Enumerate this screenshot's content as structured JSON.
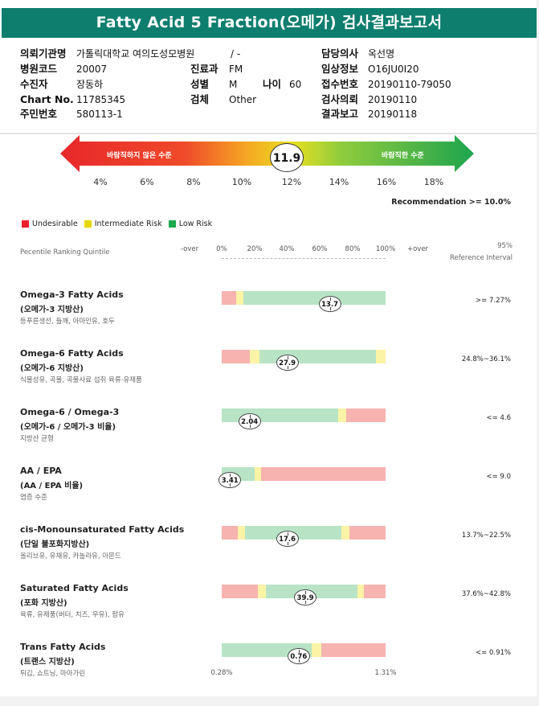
{
  "title": "Fatty Acid 5 Fraction(오메가) 검사결과보고서",
  "info": {
    "col1": [
      {
        "label": "의뢰기관명",
        "value": "가톨릭대학교 여의도성모병원"
      },
      {
        "label": "병원코드",
        "value": "20007"
      },
      {
        "label": "수진자",
        "value": "장동하"
      },
      {
        "label": "Chart No.",
        "value": "11785345"
      },
      {
        "label": "주민번호",
        "value": "580113-1"
      }
    ],
    "ward_value": "/ -",
    "col2": [
      {
        "label": "진료과",
        "value": "FM"
      },
      {
        "label": "성별",
        "value": "M"
      },
      {
        "label": "검체",
        "value": "Other"
      }
    ],
    "age": {
      "label": "나이",
      "value": "60"
    },
    "col3": [
      {
        "label": "담당의사",
        "value": "옥선명"
      },
      {
        "label": "임상정보",
        "value": "O16JU0I20"
      },
      {
        "label": "접수번호",
        "value": "20190110-79050"
      },
      {
        "label": "검사의뢰",
        "value": "20190110"
      },
      {
        "label": "결과보고",
        "value": "20190118"
      }
    ]
  },
  "gauge": {
    "left_text": "바람직하지 않은 수준",
    "right_text": "바람직한 수준",
    "value": "11.9",
    "ticks": [
      "4%",
      "6%",
      "8%",
      "10%",
      "12%",
      "14%",
      "16%",
      "18%"
    ]
  },
  "recommendation": "Recommendation  >= 10.0%",
  "legend": [
    {
      "label": "Undesirable",
      "color": "#e8202a"
    },
    {
      "label": "Intermediate Risk",
      "color": "#e6d800"
    },
    {
      "label": "Low Risk",
      "color": "#1fa84f"
    }
  ],
  "columns": {
    "ranking": "Pecentile Ranking Quintile",
    "ref_line1": "95%",
    "ref_line2": "Reference Interval",
    "scale": [
      "-over",
      "0%",
      "20%",
      "40%",
      "60%",
      "80%",
      "100%",
      "+over"
    ]
  },
  "rows": [
    {
      "name": "Omega-3 Fatty Acids",
      "sub": "(오메가-3 지방산)",
      "note": "등푸른생선, 들깨, 아마인유, 호두",
      "ref": ">= 7.27%",
      "value": "13.7",
      "marker_pos": 0.66,
      "segments": [
        {
          "c": "red",
          "w": 0.09
        },
        {
          "c": "yel",
          "w": 0.04
        },
        {
          "c": "grn",
          "w": 0.87
        }
      ]
    },
    {
      "name": "Omega-6 Fatty Acids",
      "sub": "(오메가-6 지방산)",
      "note": "식물성유, 곡물, 곡물사료 섭취 육류·유제품",
      "ref": "24.8%~36.1%",
      "value": "27.9",
      "marker_pos": 0.4,
      "segments": [
        {
          "c": "red",
          "w": 0.17
        },
        {
          "c": "yel",
          "w": 0.06
        },
        {
          "c": "grn",
          "w": 0.71
        },
        {
          "c": "yel",
          "w": 0.06
        }
      ]
    },
    {
      "name": "Omega-6 / Omega-3",
      "sub": "(오메가-6 / 오메가-3 비율)",
      "note": "지방산 균형",
      "ref": "<= 4.6",
      "value": "2.04",
      "marker_pos": 0.17,
      "segments": [
        {
          "c": "grn",
          "w": 0.71
        },
        {
          "c": "yel",
          "w": 0.05
        },
        {
          "c": "red",
          "w": 0.24
        }
      ]
    },
    {
      "name": "AA / EPA",
      "sub": "(AA / EPA 비율)",
      "note": "염증 수준",
      "ref": "<= 9.0",
      "value": "3.41",
      "marker_pos": 0.05,
      "segments": [
        {
          "c": "grn",
          "w": 0.2
        },
        {
          "c": "yel",
          "w": 0.04
        },
        {
          "c": "red",
          "w": 0.76
        }
      ]
    },
    {
      "name": "cis-Monounsaturated Fatty Acids",
      "sub": "(단일 불포화지방산)",
      "note": "올리브유, 유채유, 카놀라유, 아몬드",
      "ref": "13.7%~22.5%",
      "value": "17.6",
      "marker_pos": 0.4,
      "segments": [
        {
          "c": "red",
          "w": 0.1
        },
        {
          "c": "yel",
          "w": 0.04
        },
        {
          "c": "grn",
          "w": 0.59
        },
        {
          "c": "yel",
          "w": 0.05
        },
        {
          "c": "red",
          "w": 0.22
        }
      ]
    },
    {
      "name": "Saturated Fatty Acids",
      "sub": "(포화 지방산)",
      "note": "육류, 유제품(버터, 치즈, 우유), 팜유",
      "ref": "37.6%~42.8%",
      "value": "39.9",
      "marker_pos": 0.51,
      "segments": [
        {
          "c": "red",
          "w": 0.22
        },
        {
          "c": "yel",
          "w": 0.05
        },
        {
          "c": "grn",
          "w": 0.56
        },
        {
          "c": "yel",
          "w": 0.04
        },
        {
          "c": "red",
          "w": 0.13
        }
      ]
    },
    {
      "name": "Trans Fatty Acids",
      "sub": "(트랜스 지방산)",
      "note": "튀김, 쇼트닝, 마아가린",
      "ref": "<= 0.91%",
      "value": "0.76",
      "marker_pos": 0.47,
      "segments": [
        {
          "c": "grn",
          "w": 0.55
        },
        {
          "c": "yel",
          "w": 0.06
        },
        {
          "c": "red",
          "w": 0.39
        }
      ]
    }
  ],
  "trans_scale": [
    "0.28%",
    "1.31%"
  ]
}
